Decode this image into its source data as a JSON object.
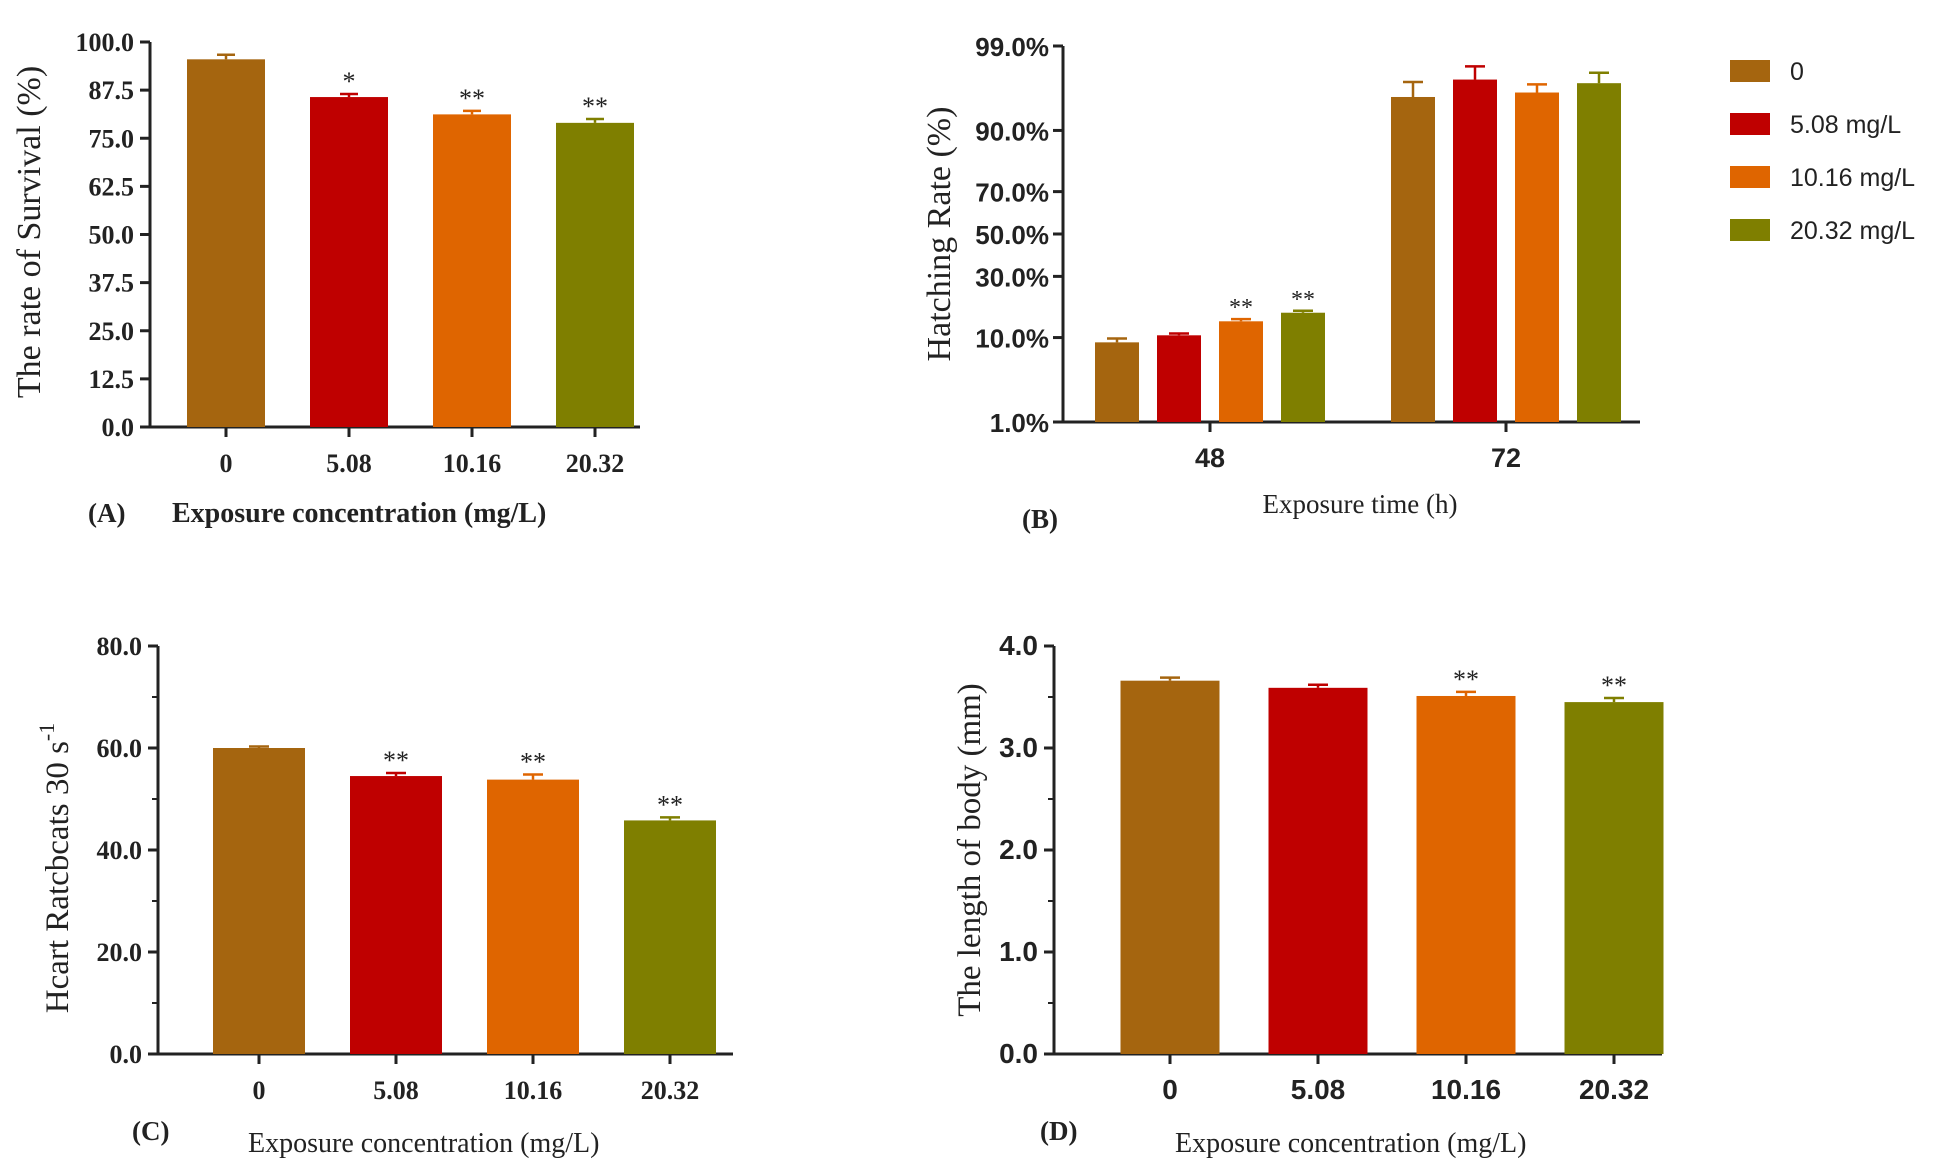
{
  "colors": [
    "#A5650F",
    "#BF0000",
    "#DF6500",
    "#7F7F00"
  ],
  "legend": {
    "title": "",
    "entries": [
      "0",
      "5.08  mg/L",
      "10.16 mg/L",
      "20.32 mg/L"
    ]
  },
  "chart_data": [
    {
      "type": "bar",
      "panel": "(A)",
      "title": "",
      "categories": [
        "0",
        "5.08",
        "10.16",
        "20.32"
      ],
      "values": [
        95.5,
        85.7,
        81.2,
        79.0
      ],
      "errors": [
        1.2,
        0.8,
        0.9,
        1.0
      ],
      "significance": [
        "",
        "*",
        "**",
        "**"
      ],
      "ylabel": "The rate of Survival (%)",
      "xlabel": "Exposure concentration (mg/L)",
      "ylim": [
        0,
        100
      ],
      "yticks": [
        "0.0",
        "12.5",
        "25.0",
        "37.5",
        "50.0",
        "62.5",
        "75.0",
        "87.5",
        "100.0"
      ]
    },
    {
      "type": "bar",
      "panel": "(B)",
      "title": "",
      "categories": [
        "48",
        "72"
      ],
      "series": [
        {
          "name": "0",
          "values": [
            9.0,
            95.5
          ],
          "errors": [
            0.8,
            1.5
          ],
          "significance": [
            "",
            ""
          ]
        },
        {
          "name": "5.08  mg/L",
          "values": [
            10.5,
            97.2
          ],
          "errors": [
            0.4,
            0.9
          ],
          "significance": [
            "",
            ""
          ]
        },
        {
          "name": "10.16 mg/L",
          "values": [
            14.0,
            96.0
          ],
          "errors": [
            0.6,
            0.8
          ],
          "significance": [
            "**",
            ""
          ]
        },
        {
          "name": "20.32 mg/L",
          "values": [
            16.5,
            96.9
          ],
          "errors": [
            0.6,
            0.8
          ],
          "significance": [
            "**",
            ""
          ]
        }
      ],
      "ylabel": "Hatching Rate (%)",
      "xlabel": "Exposure time (h)",
      "yscale": "probability",
      "yticks": [
        "1.0%",
        "10.0%",
        "30.0%",
        "50.0%",
        "70.0%",
        "90.0%",
        "99.0%"
      ]
    },
    {
      "type": "bar",
      "panel": "(C)",
      "title": "",
      "categories": [
        "0",
        "5.08",
        "10.16",
        "20.32"
      ],
      "values": [
        60.0,
        54.5,
        53.8,
        45.8
      ],
      "errors": [
        0.3,
        0.6,
        1.0,
        0.6
      ],
      "significance": [
        "",
        "**",
        "**",
        "**"
      ],
      "ylabel": "Hcart Ratcbcats 30 s",
      "ylabel_sup": "-1",
      "xlabel": "Exposure concentration (mg/L)",
      "ylim": [
        0,
        80
      ],
      "yticks": [
        "0.0",
        "20.0",
        "40.0",
        "60.0",
        "80.0"
      ]
    },
    {
      "type": "bar",
      "panel": "(D)",
      "title": "",
      "categories": [
        "0",
        "5.08",
        "10.16",
        "20.32"
      ],
      "values": [
        3.66,
        3.59,
        3.51,
        3.45
      ],
      "errors": [
        0.03,
        0.03,
        0.04,
        0.04
      ],
      "significance": [
        "",
        "",
        "**",
        "**"
      ],
      "ylabel": "The length of body (mm)",
      "xlabel": "Exposure concentration (mg/L)",
      "ylim": [
        0,
        4
      ],
      "yticks": [
        "0.0",
        "1.0",
        "2.0",
        "3.0",
        "4.0"
      ]
    }
  ]
}
